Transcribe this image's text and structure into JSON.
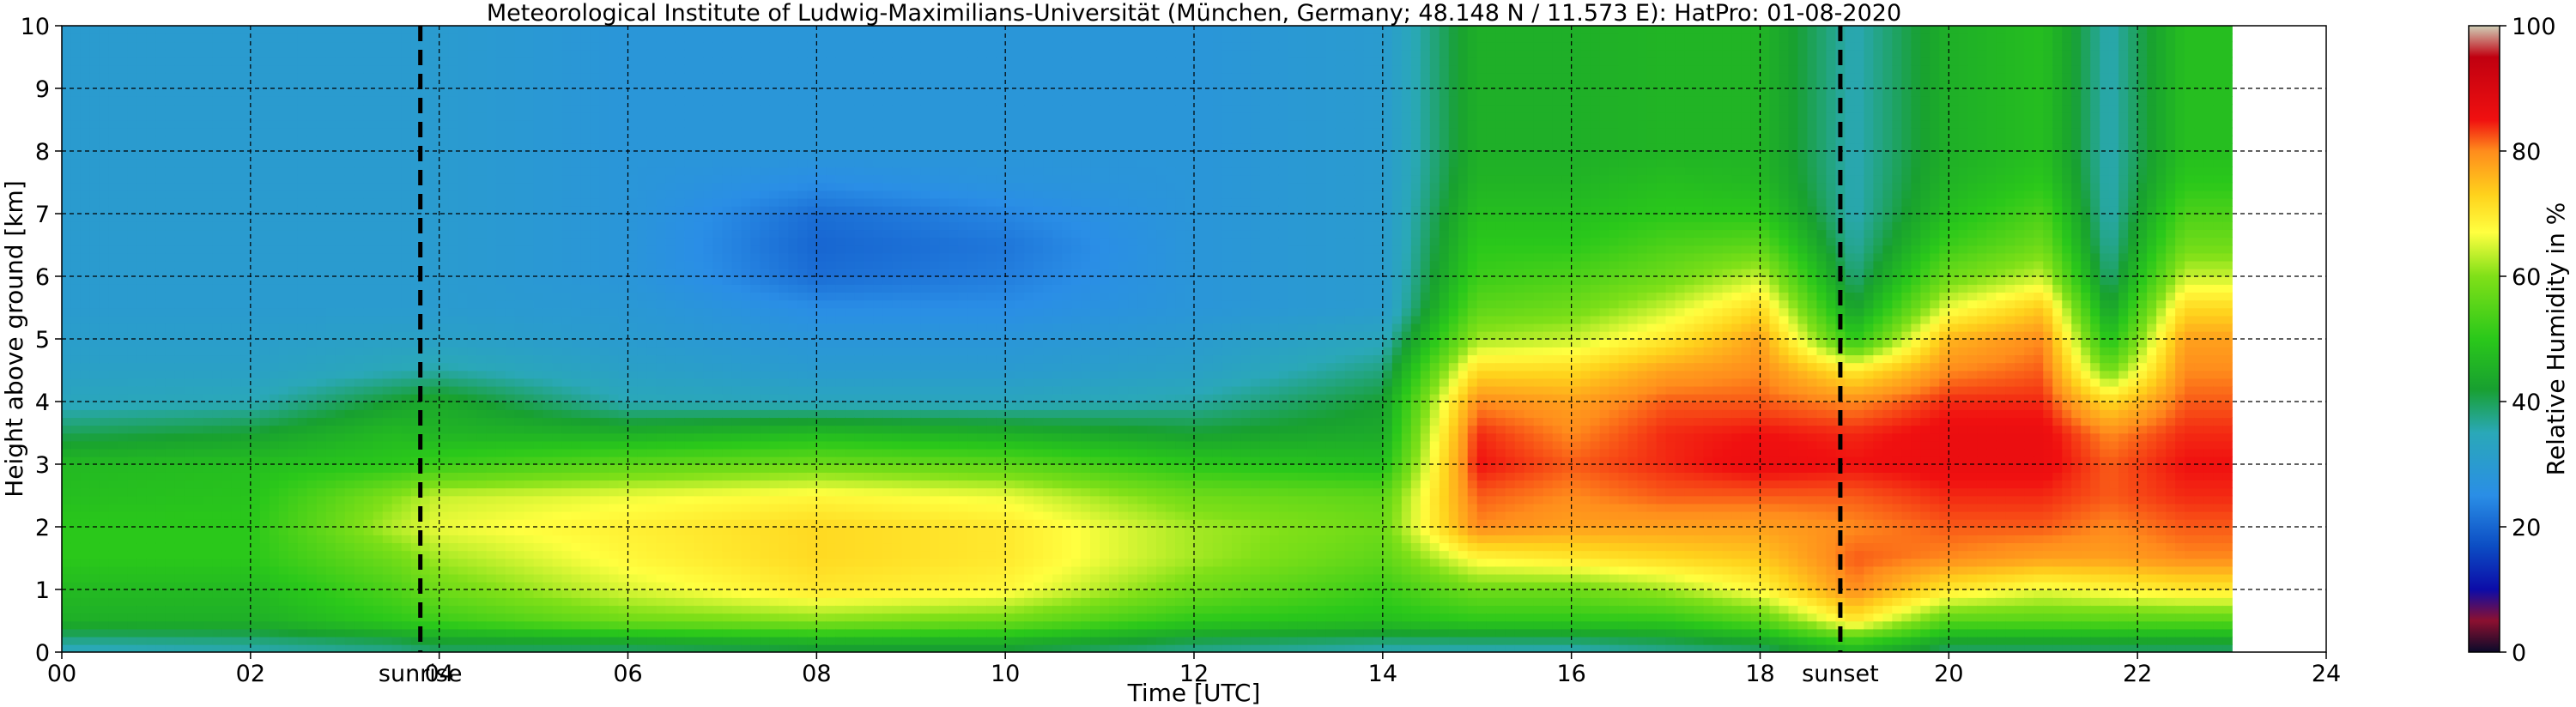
{
  "chart_data": {
    "type": "heatmap",
    "title": "Meteorological Institute of Ludwig-Maximilians-Universität (München, Germany; 48.148 N / 11.573 E):    HatPro: 01-08-2020",
    "xlabel": "Time [UTC]",
    "ylabel": "Height above ground [km]",
    "xlim": [
      0,
      24
    ],
    "ylim": [
      0,
      10
    ],
    "data_end_hour": 23,
    "x_ticks": [
      "00",
      "02",
      "04",
      "06",
      "08",
      "10",
      "12",
      "14",
      "16",
      "18",
      "20",
      "22",
      "24"
    ],
    "y_ticks": [
      "0",
      "1",
      "2",
      "3",
      "4",
      "5",
      "6",
      "7",
      "8",
      "9",
      "10"
    ],
    "grid": true,
    "colorbar": {
      "label": "Relative Humidity in %",
      "ticks": [
        "0",
        "20",
        "40",
        "60",
        "80",
        "100"
      ],
      "range": [
        0,
        100
      ],
      "colors": [
        "#0a0a2a",
        "#8c1030",
        "#0c0ca8",
        "#0c4ec4",
        "#2a8ee6",
        "#2aa8b8",
        "#18a030",
        "#2ac81a",
        "#80e018",
        "#ffff40",
        "#ffd21c",
        "#ff8c1c",
        "#f01010",
        "#c00010",
        "#d0d0b8"
      ],
      "color_positions": [
        0,
        5,
        10,
        17,
        25,
        35,
        42,
        50,
        60,
        67,
        73,
        80,
        85,
        95,
        100
      ]
    },
    "events": [
      {
        "label": "sunrise",
        "hour": 3.8
      },
      {
        "label": "sunset",
        "hour": 18.85
      }
    ],
    "heights_km": [
      0.1,
      0.5,
      1.0,
      1.5,
      2.0,
      2.5,
      3.0,
      3.5,
      4.0,
      4.5,
      5.0,
      5.5,
      6.0,
      6.5,
      7.0,
      7.5,
      8.0,
      8.5,
      9.0,
      9.5,
      10.0
    ],
    "profiles": [
      {
        "hour": 0,
        "rh": [
          35,
          45,
          47,
          50,
          50,
          48,
          47,
          40,
          34,
          32,
          31,
          30,
          30,
          30,
          30,
          30,
          30,
          30,
          30,
          30,
          30
        ]
      },
      {
        "hour": 2,
        "rh": [
          36,
          45,
          47,
          50,
          50,
          49,
          48,
          42,
          35,
          32,
          31,
          30,
          30,
          30,
          30,
          30,
          30,
          30,
          30,
          30,
          30
        ]
      },
      {
        "hour": 3.5,
        "rh": [
          38,
          50,
          54,
          58,
          63,
          60,
          50,
          47,
          42,
          35,
          32,
          30,
          30,
          30,
          30,
          30,
          30,
          30,
          30,
          30,
          30
        ]
      },
      {
        "hour": 4,
        "rh": [
          40,
          52,
          58,
          62,
          66,
          64,
          52,
          46,
          44,
          36,
          32,
          30,
          30,
          30,
          30,
          30,
          30,
          30,
          30,
          30,
          30
        ]
      },
      {
        "hour": 6,
        "rh": [
          40,
          58,
          65,
          68,
          69,
          66,
          56,
          45,
          35,
          32,
          30,
          29,
          28,
          28,
          28,
          28,
          28,
          28,
          28,
          28,
          28
        ]
      },
      {
        "hour": 8,
        "rh": [
          42,
          60,
          70,
          72,
          72,
          68,
          58,
          47,
          34,
          30,
          28,
          25,
          21,
          20,
          21,
          25,
          28,
          28,
          28,
          28,
          28
        ]
      },
      {
        "hour": 10,
        "rh": [
          42,
          58,
          68,
          70,
          70,
          66,
          56,
          45,
          34,
          30,
          28,
          25,
          23,
          22,
          24,
          27,
          28,
          28,
          28,
          28,
          28
        ]
      },
      {
        "hour": 12,
        "rh": [
          38,
          50,
          58,
          62,
          62,
          58,
          50,
          42,
          36,
          32,
          30,
          28,
          28,
          28,
          28,
          28,
          28,
          28,
          28,
          28,
          28
        ]
      },
      {
        "hour": 14,
        "rh": [
          36,
          48,
          52,
          56,
          58,
          56,
          48,
          44,
          42,
          38,
          34,
          30,
          30,
          30,
          30,
          30,
          30,
          30,
          30,
          30,
          30
        ]
      },
      {
        "hour": 15,
        "rh": [
          36,
          50,
          58,
          68,
          80,
          82,
          85,
          84,
          80,
          72,
          62,
          56,
          52,
          50,
          48,
          46,
          45,
          45,
          45,
          45,
          45
        ]
      },
      {
        "hour": 16,
        "rh": [
          36,
          50,
          58,
          70,
          78,
          80,
          82,
          80,
          78,
          72,
          64,
          58,
          54,
          50,
          48,
          46,
          45,
          45,
          45,
          45,
          45
        ]
      },
      {
        "hour": 17,
        "rh": [
          38,
          50,
          62,
          72,
          78,
          82,
          84,
          84,
          82,
          78,
          70,
          64,
          58,
          54,
          50,
          48,
          46,
          46,
          46,
          46,
          46
        ]
      },
      {
        "hour": 18,
        "rh": [
          40,
          55,
          68,
          74,
          78,
          82,
          86,
          85,
          82,
          80,
          78,
          72,
          64,
          56,
          50,
          47,
          46,
          46,
          46,
          46,
          46
        ]
      },
      {
        "hour": 19,
        "rh": [
          48,
          70,
          80,
          82,
          80,
          82,
          85,
          84,
          80,
          70,
          50,
          42,
          38,
          36,
          35,
          35,
          35,
          35,
          35,
          35,
          35
        ]
      },
      {
        "hour": 20,
        "rh": [
          40,
          55,
          70,
          80,
          82,
          84,
          86,
          86,
          84,
          80,
          76,
          66,
          58,
          52,
          48,
          46,
          45,
          45,
          45,
          45,
          45
        ]
      },
      {
        "hour": 21,
        "rh": [
          40,
          55,
          66,
          78,
          82,
          84,
          86,
          86,
          84,
          82,
          80,
          74,
          64,
          58,
          54,
          50,
          48,
          48,
          48,
          48,
          48
        ]
      },
      {
        "hour": 21.7,
        "rh": [
          40,
          55,
          68,
          78,
          80,
          82,
          82,
          80,
          72,
          58,
          48,
          42,
          38,
          36,
          35,
          35,
          35,
          35,
          35,
          35,
          35
        ]
      },
      {
        "hour": 22.5,
        "rh": [
          40,
          55,
          70,
          80,
          82,
          84,
          85,
          84,
          82,
          80,
          78,
          72,
          64,
          58,
          54,
          50,
          48,
          48,
          48,
          48,
          48
        ]
      },
      {
        "hour": 23,
        "rh": [
          40,
          55,
          70,
          80,
          82,
          84,
          85,
          84,
          82,
          80,
          78,
          72,
          64,
          58,
          54,
          50,
          48,
          48,
          48,
          48,
          48
        ]
      }
    ]
  }
}
